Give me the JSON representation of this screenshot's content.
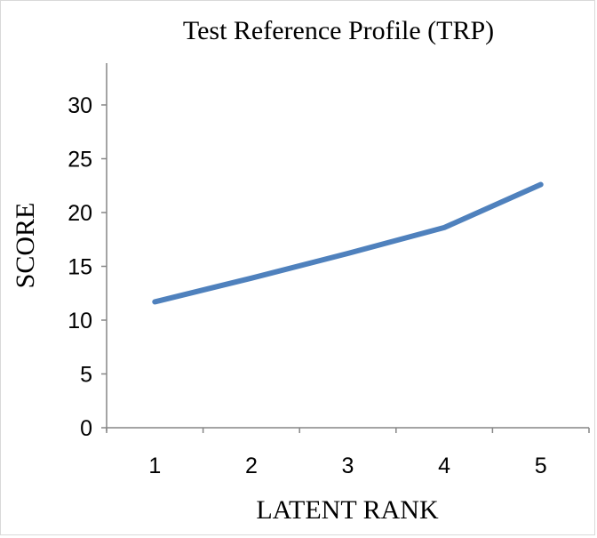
{
  "chart_data": {
    "type": "line",
    "title": "Test Reference Profile (TRP)",
    "xlabel": "LATENT RANK",
    "ylabel": "SCORE",
    "categories": [
      "1",
      "2",
      "3",
      "4",
      "5"
    ],
    "series": [
      {
        "values": [
          11.7,
          13.9,
          16.2,
          18.6,
          22.6
        ],
        "color": "#4f81bd"
      }
    ],
    "ylim": [
      0,
      30
    ],
    "yticks": [
      "0",
      "5",
      "10",
      "15",
      "20",
      "25",
      "30"
    ],
    "grid": false,
    "legend": "none"
  }
}
